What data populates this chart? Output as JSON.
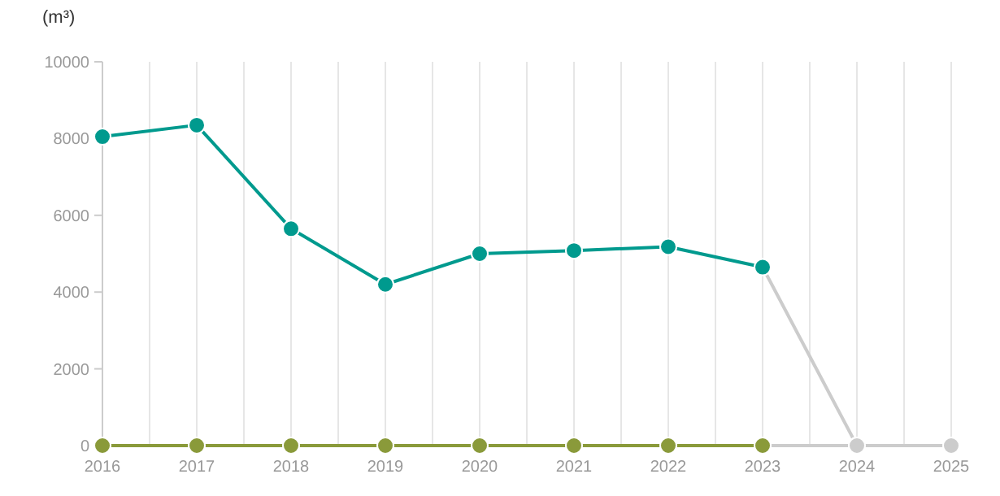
{
  "chart_data": {
    "type": "line",
    "ylabel": "(m³)",
    "x": [
      2016,
      2017,
      2018,
      2019,
      2020,
      2021,
      2022,
      2023
    ],
    "series": [
      {
        "color": "#cccccc",
        "x": [
          2023,
          2024,
          2025
        ],
        "values": [
          4650,
          0,
          0
        ]
      },
      {
        "color": "#cccccc",
        "x": [
          2023,
          2024,
          2025
        ],
        "values": [
          0,
          0,
          0
        ]
      },
      {
        "color": "#8a9a3a",
        "values": [
          0,
          0,
          0,
          0,
          0,
          0,
          0,
          0
        ]
      },
      {
        "color": "#009a8e",
        "values": [
          8050,
          8350,
          5650,
          4200,
          5000,
          5080,
          5180,
          4650
        ]
      }
    ],
    "xlim": [
      2016,
      2025
    ],
    "xticks": [
      2016,
      {
        "value": 2016.5,
        "label": null
      },
      2017,
      {
        "value": 2017.5,
        "label": null
      },
      2018,
      {
        "value": 2018.5,
        "label": null
      },
      2019,
      {
        "value": 2019.5,
        "label": null
      },
      2020,
      {
        "value": 2020.5,
        "label": null
      },
      2021,
      {
        "value": 2021.5,
        "label": null
      },
      2022,
      {
        "value": 2022.5,
        "label": null
      },
      2023,
      {
        "value": 2023.5,
        "label": null
      },
      2024,
      {
        "value": 2024.5,
        "label": null
      },
      2025
    ],
    "ylim": [
      0,
      10000
    ],
    "yticks": [
      0,
      2000,
      4000,
      6000,
      8000,
      10000
    ],
    "grid": "x",
    "marker": "circle",
    "line_style": "solid"
  }
}
